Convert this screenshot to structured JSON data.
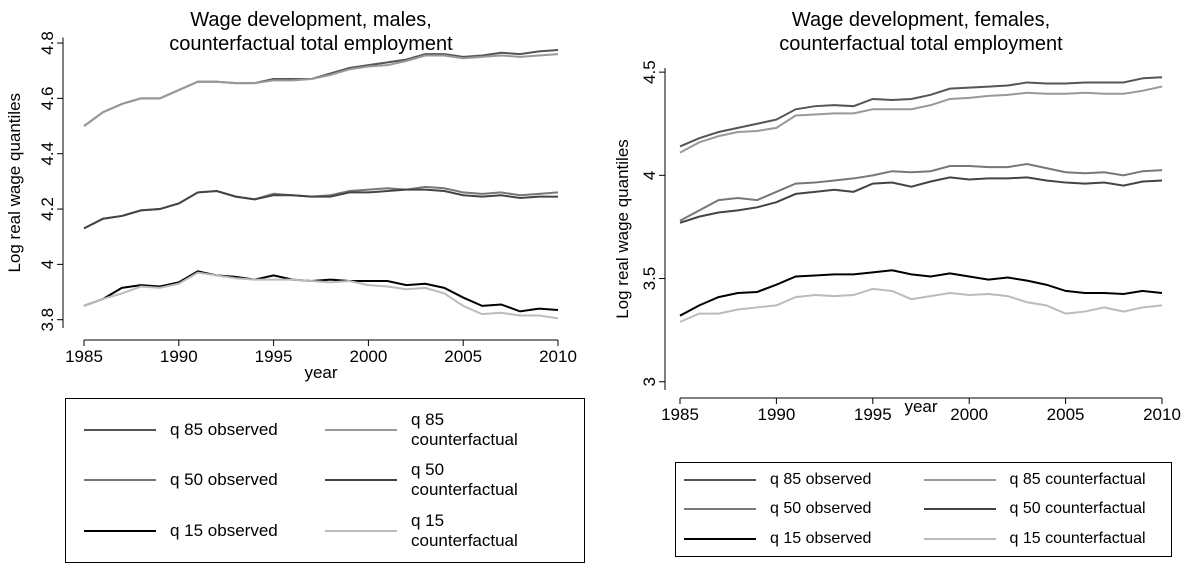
{
  "chart_data": [
    {
      "type": "line",
      "title": [
        "Wage development, males,",
        "counterfactual total employment"
      ],
      "x_label": "year",
      "y_label": "Log real wage quantiles",
      "x": [
        1985,
        1986,
        1987,
        1988,
        1989,
        1990,
        1991,
        1992,
        1993,
        1994,
        1995,
        1996,
        1997,
        1998,
        1999,
        2000,
        2001,
        2002,
        2003,
        2004,
        2005,
        2006,
        2007,
        2008,
        2009,
        2010
      ],
      "xlim": [
        1985,
        2010
      ],
      "xticks": [
        1985,
        1990,
        1995,
        2000,
        2005,
        2010
      ],
      "ylim": [
        3.77,
        4.82
      ],
      "yticks": [
        3.8,
        4,
        4.2,
        4.4,
        4.6,
        4.8
      ],
      "series": [
        {
          "name": "q 85 observed",
          "color": "#555555",
          "values": [
            4.5,
            4.55,
            4.58,
            4.6,
            4.6,
            4.63,
            4.66,
            4.66,
            4.655,
            4.655,
            4.67,
            4.67,
            4.67,
            4.69,
            4.71,
            4.72,
            4.73,
            4.74,
            4.76,
            4.76,
            4.75,
            4.755,
            4.765,
            4.76,
            4.77,
            4.775
          ]
        },
        {
          "name": "q 85 counterfactual",
          "color": "#999999",
          "values": [
            4.5,
            4.55,
            4.58,
            4.6,
            4.6,
            4.63,
            4.66,
            4.66,
            4.655,
            4.655,
            4.665,
            4.665,
            4.67,
            4.685,
            4.705,
            4.715,
            4.72,
            4.735,
            4.755,
            4.755,
            4.745,
            4.75,
            4.755,
            4.75,
            4.755,
            4.76
          ]
        },
        {
          "name": "q 50 observed",
          "color": "#777777",
          "values": [
            4.13,
            4.165,
            4.175,
            4.195,
            4.2,
            4.22,
            4.26,
            4.265,
            4.245,
            4.235,
            4.255,
            4.25,
            4.245,
            4.25,
            4.265,
            4.27,
            4.275,
            4.27,
            4.28,
            4.275,
            4.26,
            4.255,
            4.26,
            4.25,
            4.255,
            4.26
          ]
        },
        {
          "name": "q 50 counterfactual",
          "color": "#444444",
          "values": [
            4.13,
            4.165,
            4.175,
            4.195,
            4.2,
            4.22,
            4.26,
            4.265,
            4.245,
            4.235,
            4.25,
            4.25,
            4.245,
            4.245,
            4.26,
            4.26,
            4.265,
            4.27,
            4.27,
            4.265,
            4.25,
            4.245,
            4.25,
            4.24,
            4.245,
            4.245
          ]
        },
        {
          "name": "q 15 observed",
          "color": "#000000",
          "values": [
            3.85,
            3.875,
            3.915,
            3.925,
            3.92,
            3.935,
            3.975,
            3.96,
            3.955,
            3.945,
            3.96,
            3.945,
            3.94,
            3.945,
            3.94,
            3.94,
            3.94,
            3.925,
            3.93,
            3.915,
            3.88,
            3.85,
            3.855,
            3.83,
            3.84,
            3.835
          ]
        },
        {
          "name": "q 15 counterfactual",
          "color": "#bbbbbb",
          "values": [
            3.85,
            3.875,
            3.895,
            3.92,
            3.915,
            3.93,
            3.97,
            3.96,
            3.95,
            3.945,
            3.945,
            3.945,
            3.94,
            3.935,
            3.94,
            3.925,
            3.92,
            3.91,
            3.915,
            3.895,
            3.85,
            3.82,
            3.825,
            3.815,
            3.815,
            3.805
          ]
        }
      ]
    },
    {
      "type": "line",
      "title": [
        "Wage development, females,",
        "counterfactual total employment"
      ],
      "x_label": "year",
      "y_label": "Log real wage quantiles",
      "x": [
        1985,
        1986,
        1987,
        1988,
        1989,
        1990,
        1991,
        1992,
        1993,
        1994,
        1995,
        1996,
        1997,
        1998,
        1999,
        2000,
        2001,
        2002,
        2003,
        2004,
        2005,
        2006,
        2007,
        2008,
        2009,
        2010
      ],
      "xlim": [
        1985,
        2010
      ],
      "xticks": [
        1985,
        1990,
        1995,
        2000,
        2005,
        2010
      ],
      "ylim": [
        2.96,
        4.52
      ],
      "yticks": [
        3,
        3.5,
        4,
        4.5
      ],
      "series": [
        {
          "name": "q 85 observed",
          "color": "#555555",
          "values": [
            4.14,
            4.18,
            4.21,
            4.23,
            4.25,
            4.27,
            4.32,
            4.335,
            4.34,
            4.335,
            4.37,
            4.365,
            4.37,
            4.39,
            4.42,
            4.425,
            4.43,
            4.435,
            4.45,
            4.445,
            4.445,
            4.45,
            4.45,
            4.45,
            4.47,
            4.475
          ]
        },
        {
          "name": "q 85 counterfactual",
          "color": "#999999",
          "values": [
            4.11,
            4.16,
            4.19,
            4.21,
            4.215,
            4.23,
            4.29,
            4.295,
            4.3,
            4.3,
            4.32,
            4.32,
            4.32,
            4.34,
            4.37,
            4.375,
            4.385,
            4.39,
            4.4,
            4.395,
            4.395,
            4.4,
            4.395,
            4.395,
            4.41,
            4.43
          ]
        },
        {
          "name": "q 50 observed",
          "color": "#777777",
          "values": [
            3.78,
            3.83,
            3.88,
            3.89,
            3.88,
            3.92,
            3.96,
            3.965,
            3.975,
            3.985,
            4.0,
            4.02,
            4.015,
            4.02,
            4.045,
            4.045,
            4.04,
            4.04,
            4.055,
            4.035,
            4.015,
            4.01,
            4.015,
            4.0,
            4.02,
            4.025
          ]
        },
        {
          "name": "q 50 counterfactual",
          "color": "#444444",
          "values": [
            3.77,
            3.8,
            3.82,
            3.83,
            3.845,
            3.87,
            3.91,
            3.92,
            3.93,
            3.92,
            3.96,
            3.965,
            3.945,
            3.97,
            3.99,
            3.98,
            3.985,
            3.985,
            3.99,
            3.975,
            3.965,
            3.96,
            3.965,
            3.95,
            3.97,
            3.975
          ]
        },
        {
          "name": "q 15 observed",
          "color": "#000000",
          "values": [
            3.32,
            3.37,
            3.41,
            3.43,
            3.435,
            3.47,
            3.51,
            3.515,
            3.52,
            3.52,
            3.53,
            3.54,
            3.52,
            3.51,
            3.525,
            3.51,
            3.495,
            3.505,
            3.49,
            3.47,
            3.44,
            3.43,
            3.43,
            3.425,
            3.44,
            3.43
          ]
        },
        {
          "name": "q 15 counterfactual",
          "color": "#bbbbbb",
          "values": [
            3.29,
            3.33,
            3.33,
            3.35,
            3.36,
            3.37,
            3.41,
            3.42,
            3.415,
            3.42,
            3.45,
            3.44,
            3.4,
            3.415,
            3.43,
            3.42,
            3.425,
            3.415,
            3.385,
            3.37,
            3.33,
            3.34,
            3.36,
            3.34,
            3.36,
            3.37
          ]
        }
      ]
    }
  ]
}
